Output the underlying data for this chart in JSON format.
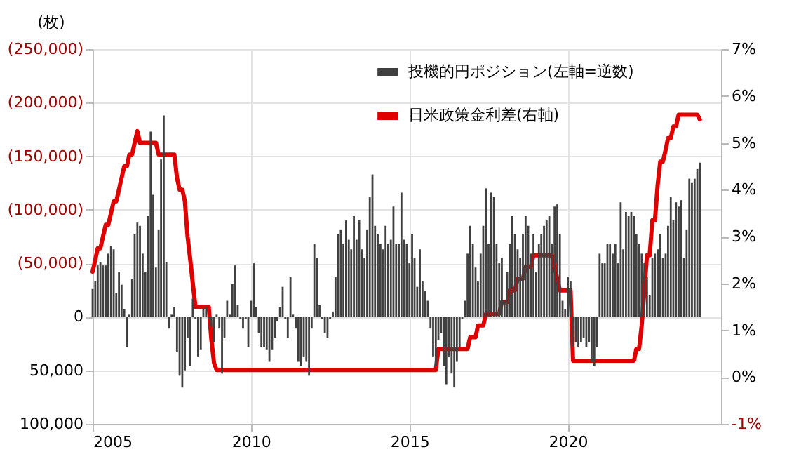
{
  "chart_data": {
    "type": "bar",
    "ylabel": "(枚)",
    "legend": "top right",
    "grid": true,
    "xlim": [
      "2005",
      "2024-11"
    ],
    "xticks": [
      "2005",
      "2010",
      "2015",
      "2020"
    ],
    "ylim": [
      100000,
      -250000
    ],
    "yticks": [
      {
        "value": -250000,
        "label": "(250,000)"
      },
      {
        "value": -200000,
        "label": "(200,000)"
      },
      {
        "value": -150000,
        "label": "(150,000)"
      },
      {
        "value": -100000,
        "label": "(100,000)"
      },
      {
        "value": -50000,
        "label": "(50,000)"
      },
      {
        "value": 0,
        "label": "0"
      },
      {
        "value": 50000,
        "label": "50,000"
      },
      {
        "value": 100000,
        "label": "100,000"
      }
    ],
    "y2lim": [
      -1,
      7
    ],
    "y2ticks": [
      {
        "value": -1,
        "label": "-1%"
      },
      {
        "value": 0,
        "label": "0%"
      },
      {
        "value": 1,
        "label": "1%"
      },
      {
        "value": 2,
        "label": "2%"
      },
      {
        "value": 3,
        "label": "3%"
      },
      {
        "value": 4,
        "label": "4%"
      },
      {
        "value": 5,
        "label": "5%"
      },
      {
        "value": 6,
        "label": "6%"
      },
      {
        "value": 7,
        "label": "7%"
      }
    ],
    "x": [
      "2005-01",
      "2005-02",
      "2005-03",
      "2005-04",
      "2005-05",
      "2005-06",
      "2005-07",
      "2005-08",
      "2005-09",
      "2005-10",
      "2005-11",
      "2005-12",
      "2006-01",
      "2006-02",
      "2006-03",
      "2006-04",
      "2006-05",
      "2006-06",
      "2006-07",
      "2006-08",
      "2006-09",
      "2006-10",
      "2006-11",
      "2006-12",
      "2007-01",
      "2007-02",
      "2007-03",
      "2007-04",
      "2007-05",
      "2007-06",
      "2007-07",
      "2007-08",
      "2007-09",
      "2007-10",
      "2007-11",
      "2007-12",
      "2008-01",
      "2008-02",
      "2008-03",
      "2008-04",
      "2008-05",
      "2008-06",
      "2008-07",
      "2008-08",
      "2008-09",
      "2008-10",
      "2008-11",
      "2008-12",
      "2009-01",
      "2009-02",
      "2009-03",
      "2009-04",
      "2009-05",
      "2009-06",
      "2009-07",
      "2009-08",
      "2009-09",
      "2009-10",
      "2009-11",
      "2009-12",
      "2010-01",
      "2010-02",
      "2010-03",
      "2010-04",
      "2010-05",
      "2010-06",
      "2010-07",
      "2010-08",
      "2010-09",
      "2010-10",
      "2010-11",
      "2010-12",
      "2011-01",
      "2011-02",
      "2011-03",
      "2011-04",
      "2011-05",
      "2011-06",
      "2011-07",
      "2011-08",
      "2011-09",
      "2011-10",
      "2011-11",
      "2011-12",
      "2012-01",
      "2012-02",
      "2012-03",
      "2012-04",
      "2012-05",
      "2012-06",
      "2012-07",
      "2012-08",
      "2012-09",
      "2012-10",
      "2012-11",
      "2012-12",
      "2013-01",
      "2013-02",
      "2013-03",
      "2013-04",
      "2013-05",
      "2013-06",
      "2013-07",
      "2013-08",
      "2013-09",
      "2013-10",
      "2013-11",
      "2013-12",
      "2014-01",
      "2014-02",
      "2014-03",
      "2014-04",
      "2014-05",
      "2014-06",
      "2014-07",
      "2014-08",
      "2014-09",
      "2014-10",
      "2014-11",
      "2014-12",
      "2015-01",
      "2015-02",
      "2015-03",
      "2015-04",
      "2015-05",
      "2015-06",
      "2015-07",
      "2015-08",
      "2015-09",
      "2015-10",
      "2015-11",
      "2015-12",
      "2016-01",
      "2016-02",
      "2016-03",
      "2016-04",
      "2016-05",
      "2016-06",
      "2016-07",
      "2016-08",
      "2016-09",
      "2016-10",
      "2016-11",
      "2016-12",
      "2017-01",
      "2017-02",
      "2017-03",
      "2017-04",
      "2017-05",
      "2017-06",
      "2017-07",
      "2017-08",
      "2017-09",
      "2017-10",
      "2017-11",
      "2017-12",
      "2018-01",
      "2018-02",
      "2018-03",
      "2018-04",
      "2018-05",
      "2018-06",
      "2018-07",
      "2018-08",
      "2018-09",
      "2018-10",
      "2018-11",
      "2018-12",
      "2019-01",
      "2019-02",
      "2019-03",
      "2019-04",
      "2019-05",
      "2019-06",
      "2019-07",
      "2019-08",
      "2019-09",
      "2019-10",
      "2019-11",
      "2019-12",
      "2020-01",
      "2020-02",
      "2020-03",
      "2020-04",
      "2020-05",
      "2020-06",
      "2020-07",
      "2020-08",
      "2020-09",
      "2020-10",
      "2020-11",
      "2020-12",
      "2021-01",
      "2021-02",
      "2021-03",
      "2021-04",
      "2021-05",
      "2021-06",
      "2021-07",
      "2021-08",
      "2021-09",
      "2021-10",
      "2021-11",
      "2021-12",
      "2022-01",
      "2022-02",
      "2022-03",
      "2022-04",
      "2022-05",
      "2022-06",
      "2022-07",
      "2022-08",
      "2022-09",
      "2022-10",
      "2022-11",
      "2022-12",
      "2023-01",
      "2023-02",
      "2023-03",
      "2023-04",
      "2023-05",
      "2023-06",
      "2023-07",
      "2023-08",
      "2023-09",
      "2023-10",
      "2023-11",
      "2023-12",
      "2024-01",
      "2024-02",
      "2024-03"
    ],
    "series": [
      {
        "name": "投機的円ポジション(左軸=逆数)",
        "color": "#404040",
        "values": [
          -26000,
          -33000,
          -48000,
          -51000,
          -48000,
          -48000,
          -59000,
          -66000,
          -63000,
          -22000,
          -42000,
          -30000,
          -7000,
          28000,
          -2000,
          -35000,
          -77000,
          -88000,
          -85000,
          -59000,
          -42000,
          -94000,
          -173000,
          -114000,
          -46000,
          -81000,
          -147000,
          -188000,
          -51000,
          11000,
          -2000,
          -9000,
          33000,
          55000,
          66000,
          50000,
          20000,
          46000,
          -17000,
          2000,
          37000,
          31000,
          -7000,
          -9000,
          2000,
          9000,
          24000,
          -2000,
          11000,
          53000,
          20000,
          -15000,
          -2000,
          -31000,
          -48000,
          -11000,
          2000,
          11000,
          2000,
          28000,
          -15000,
          -50000,
          -9000,
          15000,
          28000,
          28000,
          31000,
          42000,
          31000,
          20000,
          4000,
          -9000,
          -28000,
          2000,
          20000,
          -37000,
          -2000,
          11000,
          42000,
          46000,
          37000,
          42000,
          55000,
          11000,
          -68000,
          -55000,
          -11000,
          2000,
          15000,
          20000,
          2000,
          -5000,
          -37000,
          -77000,
          -81000,
          -68000,
          -90000,
          -72000,
          -63000,
          -94000,
          -72000,
          -90000,
          -63000,
          -55000,
          -81000,
          -112000,
          -133000,
          -85000,
          -77000,
          -68000,
          -63000,
          -85000,
          -68000,
          -72000,
          -103000,
          -68000,
          -68000,
          -116000,
          -72000,
          -68000,
          -50000,
          -77000,
          -55000,
          -28000,
          -63000,
          -33000,
          -24000,
          -15000,
          11000,
          37000,
          46000,
          22000,
          15000,
          46000,
          63000,
          37000,
          53000,
          66000,
          42000,
          28000,
          2000,
          -15000,
          -59000,
          -85000,
          -68000,
          -46000,
          -33000,
          -59000,
          -85000,
          -120000,
          -68000,
          -116000,
          -112000,
          -68000,
          -50000,
          -55000,
          -15000,
          -42000,
          -68000,
          -94000,
          -77000,
          -63000,
          -55000,
          -77000,
          -94000,
          -85000,
          -59000,
          -77000,
          -42000,
          -68000,
          -77000,
          -85000,
          -90000,
          -94000,
          -68000,
          -103000,
          -105000,
          -77000,
          -15000,
          -7000,
          -37000,
          -33000,
          28000,
          24000,
          28000,
          24000,
          20000,
          28000,
          24000,
          42000,
          46000,
          28000,
          -59000,
          -50000,
          -50000,
          -68000,
          -68000,
          -59000,
          -68000,
          -50000,
          -107000,
          -63000,
          -98000,
          -94000,
          -98000,
          -94000,
          -77000,
          -68000,
          -59000,
          -50000,
          -37000,
          -20000,
          -55000,
          -59000,
          -63000,
          -77000,
          -55000,
          -59000,
          -85000,
          -112000,
          -90000,
          -107000,
          -103000,
          -109000,
          -55000,
          -81000,
          -129000,
          -125000,
          -129000,
          -138000,
          -144000
        ]
      },
      {
        "name": "日米政策金利差(右軸)",
        "type": "line",
        "axis": "y2",
        "color": "#e00000",
        "values": [
          2.25,
          2.5,
          2.75,
          2.75,
          3.0,
          3.25,
          3.25,
          3.5,
          3.75,
          3.75,
          4.0,
          4.25,
          4.5,
          4.5,
          4.75,
          4.75,
          5.0,
          5.25,
          5.0,
          5.0,
          5.0,
          5.0,
          5.0,
          5.0,
          5.0,
          4.75,
          4.75,
          4.75,
          4.75,
          4.75,
          4.75,
          4.75,
          4.25,
          4.0,
          4.0,
          3.75,
          3.0,
          2.5,
          2.0,
          1.5,
          1.5,
          1.5,
          1.5,
          1.5,
          1.5,
          0.8,
          0.3,
          0.15,
          0.15,
          0.15,
          0.15,
          0.15,
          0.15,
          0.15,
          0.15,
          0.15,
          0.15,
          0.15,
          0.15,
          0.15,
          0.15,
          0.15,
          0.15,
          0.15,
          0.15,
          0.15,
          0.15,
          0.15,
          0.15,
          0.15,
          0.15,
          0.15,
          0.15,
          0.15,
          0.15,
          0.15,
          0.15,
          0.15,
          0.15,
          0.15,
          0.15,
          0.15,
          0.15,
          0.15,
          0.15,
          0.15,
          0.15,
          0.15,
          0.15,
          0.15,
          0.15,
          0.15,
          0.15,
          0.15,
          0.15,
          0.15,
          0.15,
          0.15,
          0.15,
          0.15,
          0.15,
          0.15,
          0.15,
          0.15,
          0.15,
          0.15,
          0.15,
          0.15,
          0.15,
          0.15,
          0.15,
          0.15,
          0.15,
          0.15,
          0.15,
          0.15,
          0.15,
          0.15,
          0.15,
          0.15,
          0.15,
          0.15,
          0.15,
          0.15,
          0.15,
          0.15,
          0.15,
          0.15,
          0.15,
          0.15,
          0.15,
          0.6,
          0.6,
          0.6,
          0.6,
          0.6,
          0.6,
          0.6,
          0.6,
          0.6,
          0.6,
          0.6,
          0.6,
          0.85,
          0.85,
          0.85,
          1.1,
          1.1,
          1.1,
          1.35,
          1.35,
          1.35,
          1.35,
          1.35,
          1.35,
          1.6,
          1.6,
          1.6,
          1.85,
          1.85,
          1.85,
          2.1,
          2.1,
          2.1,
          2.35,
          2.35,
          2.35,
          2.6,
          2.6,
          2.6,
          2.6,
          2.6,
          2.6,
          2.6,
          2.6,
          2.35,
          2.1,
          1.85,
          1.85,
          1.85,
          1.85,
          1.85,
          0.35,
          0.35,
          0.35,
          0.35,
          0.35,
          0.35,
          0.35,
          0.35,
          0.35,
          0.35,
          0.35,
          0.35,
          0.35,
          0.35,
          0.35,
          0.35,
          0.35,
          0.35,
          0.35,
          0.35,
          0.35,
          0.35,
          0.35,
          0.35,
          0.6,
          0.6,
          1.1,
          1.85,
          2.6,
          2.6,
          3.35,
          3.35,
          4.1,
          4.6,
          4.6,
          4.85,
          5.1,
          5.1,
          5.35,
          5.35,
          5.6,
          5.6,
          5.6,
          5.6,
          5.6,
          5.6,
          5.6,
          5.6,
          5.5
        ]
      }
    ]
  }
}
